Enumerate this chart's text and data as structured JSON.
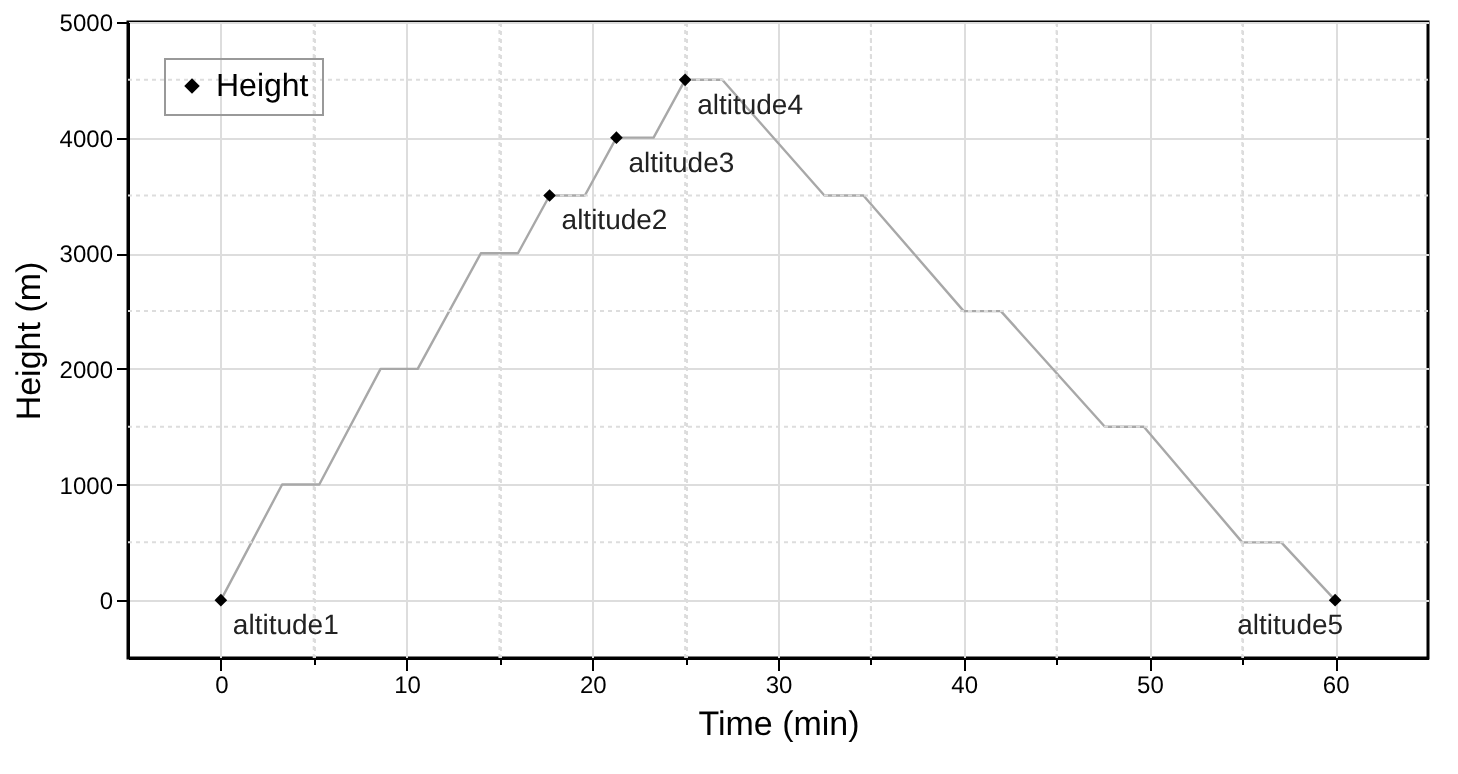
{
  "chart_data": {
    "type": "line",
    "xlabel": "Time (min)",
    "ylabel": "Height (m)",
    "xlim": [
      -5,
      65
    ],
    "ylim": [
      -500,
      5000
    ],
    "xticks": [
      0,
      {
        "value": 5,
        "label": null
      },
      10,
      {
        "value": 15,
        "label": null
      },
      20,
      {
        "value": 25,
        "label": null
      },
      30,
      {
        "value": 35,
        "label": null
      },
      40,
      {
        "value": 45,
        "label": null
      },
      50,
      {
        "value": 55,
        "label": null
      },
      60
    ],
    "yticks": [
      0,
      {
        "value": 500,
        "label": null
      },
      1000,
      {
        "value": 1500,
        "label": null
      },
      2000,
      {
        "value": 2500,
        "label": null
      },
      3000,
      {
        "value": 3500,
        "label": null
      },
      4000,
      {
        "value": 4500,
        "label": null
      },
      5000
    ],
    "grid": true,
    "legend": "top left",
    "series": [
      {
        "type": "line",
        "color": "#a8a8a8",
        "marker": "none",
        "x": [
          0,
          3.3,
          5.3,
          8.6,
          10.6,
          14.0,
          16.0,
          17.7,
          19.6,
          21.3,
          23.3,
          25,
          27.0,
          32.5,
          34.6,
          40.0,
          42.0,
          47.6,
          49.7,
          55.0,
          57.1,
          60
        ],
        "values": [
          0,
          1000,
          1000,
          2000,
          2000,
          3000,
          3000,
          3500,
          3500,
          4000,
          4000,
          4500,
          4500,
          3500,
          3500,
          2500,
          2500,
          1500,
          1500,
          500,
          500,
          0
        ]
      },
      {
        "type": "scatter",
        "name": "Height",
        "color": "#000000",
        "marker": "diamond",
        "x": [
          0,
          17.7,
          21.3,
          25,
          60
        ],
        "values": [
          0,
          3500,
          4000,
          4500,
          0
        ]
      }
    ],
    "annotations": [
      {
        "text": "altitude1",
        "x": 0,
        "y": 0
      },
      {
        "text": "altitude2",
        "x": 17.7,
        "y": 3500
      },
      {
        "text": "altitude3",
        "x": 21.3,
        "y": 4000
      },
      {
        "text": "altitude4",
        "x": 25,
        "y": 4500
      },
      {
        "text": "altitude5",
        "x": 60,
        "y": 0
      }
    ]
  }
}
